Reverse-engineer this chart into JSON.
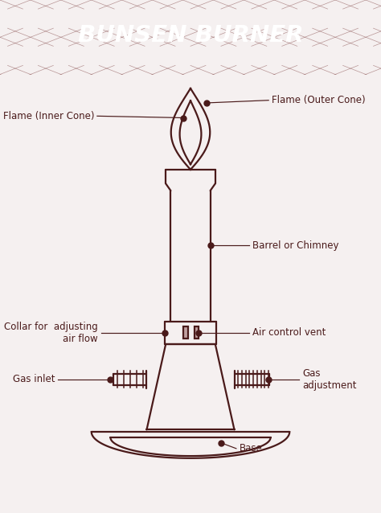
{
  "title": "BUNSEN BURNER",
  "title_bg": "#5c1a1a",
  "title_color": "#ffffff",
  "diagram_bg": "#f5f0f0",
  "line_color": "#4a1a1a",
  "label_color": "#4a1a1a",
  "label_fontsize": 8.5,
  "lw": 1.6,
  "labels": {
    "flame_outer": "Flame (Outer Cone)",
    "flame_inner": "Flame (Inner Cone)",
    "barrel": "Barrel or Chimney",
    "collar": "Collar for  adjusting\n    air flow",
    "air_vent": "Air control vent",
    "gas_inlet": "Gas inlet",
    "gas_adj": "Gas\nadjustment",
    "base": "Base"
  }
}
